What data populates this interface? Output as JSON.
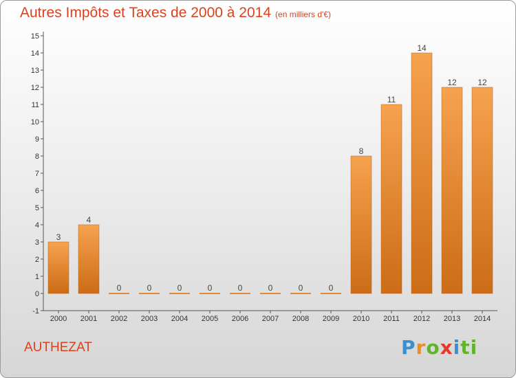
{
  "header": {
    "title": "Autres Impôts et Taxes de 2000 à 2014",
    "subtitle": "(en milliers d'€)"
  },
  "commune": "AUTHEZAT",
  "brand": {
    "letters": [
      "P",
      "r",
      "o",
      "x",
      "i",
      "ti"
    ]
  },
  "colors": {
    "title": "#d9421c",
    "bar_top": "#f6a24f",
    "bar_bottom": "#cc6c16",
    "zero_bar": "#e08a3a"
  },
  "chart_data": {
    "type": "bar",
    "title": "Autres Impôts et Taxes de 2000 à 2014",
    "subtitle": "(en milliers d'€)",
    "categories": [
      "2000",
      "2001",
      "2002",
      "2003",
      "2004",
      "2005",
      "2006",
      "2007",
      "2008",
      "2009",
      "2010",
      "2011",
      "2012",
      "2013",
      "2014"
    ],
    "values": [
      3,
      4,
      0,
      0,
      0,
      0,
      0,
      0,
      0,
      0,
      8,
      11,
      14,
      12,
      12
    ],
    "ylim": [
      -1,
      15
    ],
    "yticks": [
      -1,
      0,
      1,
      2,
      3,
      4,
      5,
      6,
      7,
      8,
      9,
      10,
      11,
      12,
      13,
      14,
      15
    ],
    "grid": false,
    "legend": "none"
  }
}
